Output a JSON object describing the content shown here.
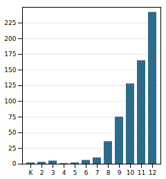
{
  "chart_data": {
    "type": "bar",
    "categories": [
      "K",
      "2",
      "3",
      "4",
      "5",
      "6",
      "7",
      "8",
      "9",
      "10",
      "11",
      "12"
    ],
    "values": [
      2,
      3,
      5,
      1,
      2,
      6,
      10,
      36,
      75,
      128,
      165,
      242
    ],
    "color": "#2e6b8a",
    "ylim": [
      0,
      250
    ],
    "yticks": [
      0,
      25,
      50,
      75,
      100,
      125,
      150,
      175,
      200,
      225
    ],
    "grid": true
  }
}
